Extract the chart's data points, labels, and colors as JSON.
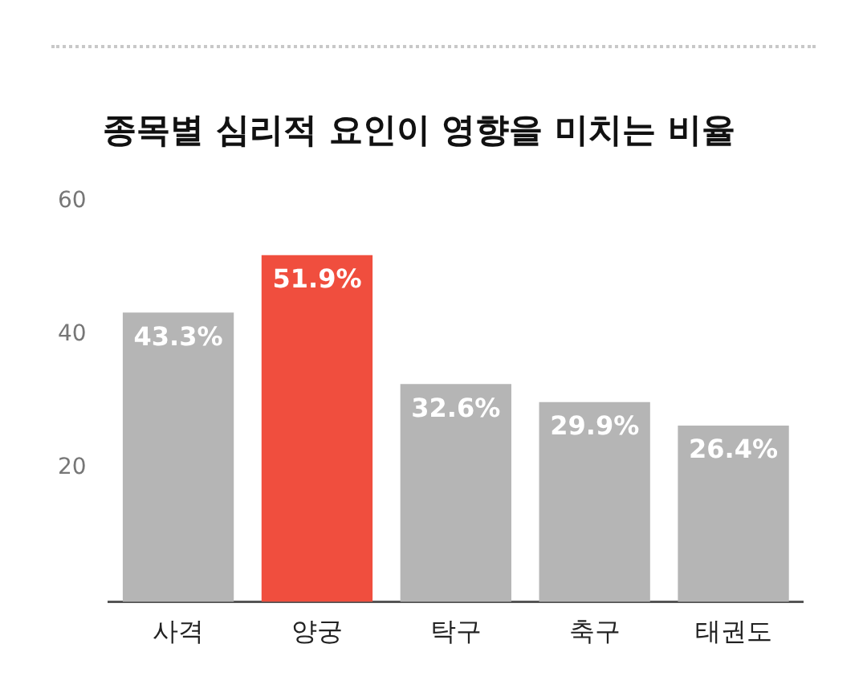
{
  "chart_data": {
    "type": "bar",
    "title": "종목별 심리적 요인이 영향을 미치는 비율",
    "categories": [
      "사격",
      "양궁",
      "탁구",
      "축구",
      "태권도"
    ],
    "values": [
      43.3,
      51.9,
      32.6,
      29.9,
      26.4
    ],
    "colors": [
      "#b5b5b5",
      "#f04e3e",
      "#b5b5b5",
      "#b5b5b5",
      "#b5b5b5"
    ],
    "value_labels": [
      "43.3%",
      "51.9%",
      "32.6%",
      "29.9%",
      "26.4%"
    ],
    "ylim": [
      0,
      60
    ],
    "yticks": [
      20,
      40,
      60
    ],
    "grid": false,
    "legend": false
  }
}
